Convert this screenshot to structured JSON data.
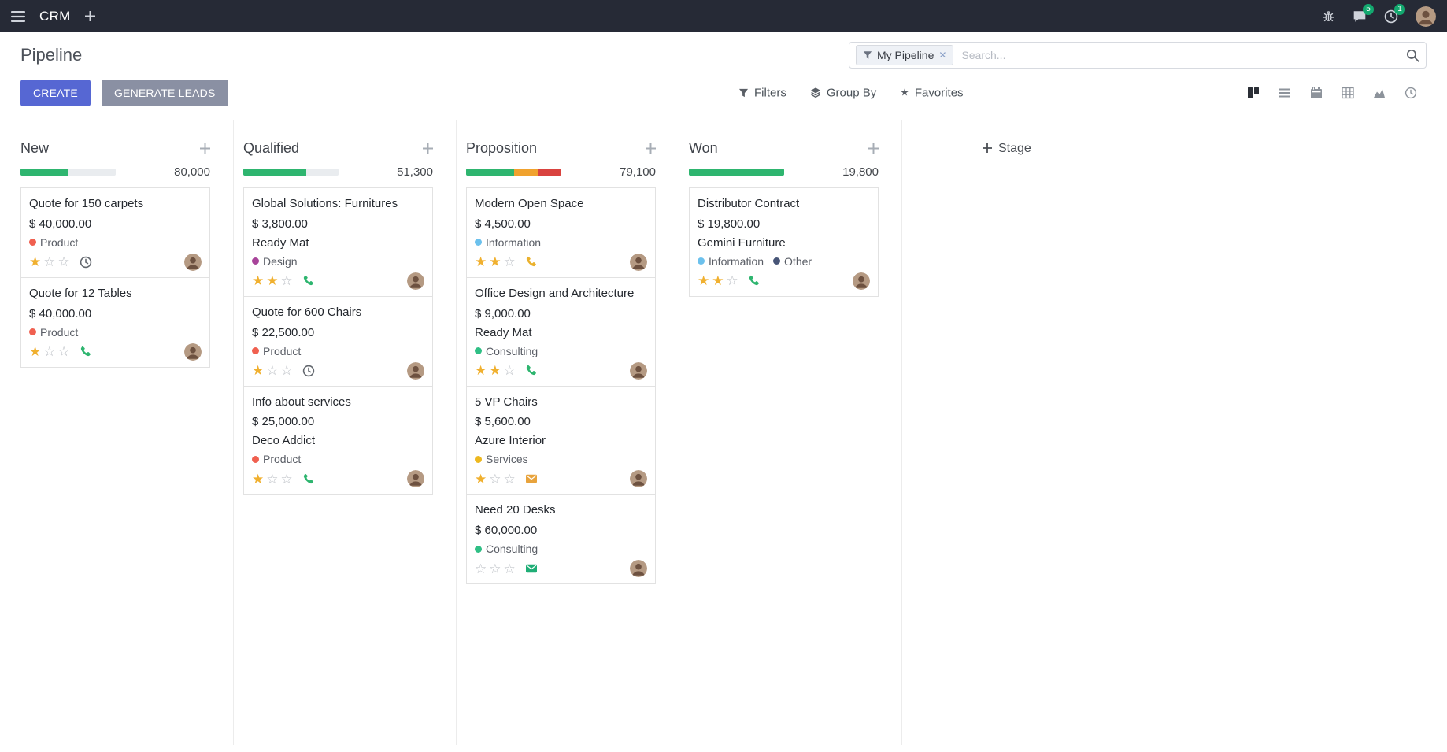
{
  "navbar": {
    "app_name": "CRM",
    "messages_badge": "5",
    "activities_badge": "1"
  },
  "control_panel": {
    "title": "Pipeline",
    "create_label": "CREATE",
    "generate_leads_label": "GENERATE LEADS",
    "search": {
      "facet_label": "My Pipeline",
      "placeholder": "Search..."
    },
    "filters_label": "Filters",
    "group_by_label": "Group By",
    "favorites_label": "Favorites",
    "view_switcher": {
      "active": "kanban",
      "views": [
        "kanban",
        "list",
        "calendar",
        "pivot",
        "graph",
        "activity"
      ]
    }
  },
  "theme": {
    "navbar_bg": "#262a36",
    "primary": "#5667d3",
    "secondary": "#8a90a3",
    "success": "#2eb56f",
    "warning": "#f0a22e",
    "danger": "#d9433f",
    "badge": "#13a86f"
  },
  "board": {
    "add_stage": {
      "label": "Stage"
    },
    "columns": [
      {
        "name": "New",
        "total": "80,000",
        "progress": [
          {
            "color": "#2eb56f",
            "pct": 50
          }
        ],
        "cards": [
          {
            "title": "Quote for 150 carpets",
            "amount": "$ 40,000.00",
            "stars": 1,
            "tags": [
              {
                "label": "Product",
                "color": "#f06050"
              }
            ],
            "activity": {
              "type": "clock",
              "color": "#62676e"
            }
          },
          {
            "title": "Quote for 12 Tables",
            "amount": "$ 40,000.00",
            "stars": 1,
            "tags": [
              {
                "label": "Product",
                "color": "#f06050"
              }
            ],
            "activity": {
              "type": "phone",
              "color": "#2eb56f"
            }
          }
        ]
      },
      {
        "name": "Qualified",
        "total": "51,300",
        "progress": [
          {
            "color": "#2eb56f",
            "pct": 66
          }
        ],
        "cards": [
          {
            "title": "Global Solutions: Furnitures",
            "amount": "$ 3,800.00",
            "partner": "Ready Mat",
            "stars": 2,
            "tags": [
              {
                "label": "Design",
                "color": "#a8449a"
              }
            ],
            "activity": {
              "type": "phone",
              "color": "#2eb56f"
            }
          },
          {
            "title": "Quote for 600 Chairs",
            "amount": "$ 22,500.00",
            "stars": 1,
            "tags": [
              {
                "label": "Product",
                "color": "#f06050"
              }
            ],
            "activity": {
              "type": "clock",
              "color": "#62676e"
            }
          },
          {
            "title": "Info about services",
            "amount": "$ 25,000.00",
            "partner": "Deco Addict",
            "stars": 1,
            "tags": [
              {
                "label": "Product",
                "color": "#f06050"
              }
            ],
            "activity": {
              "type": "phone",
              "color": "#2eb56f"
            }
          }
        ]
      },
      {
        "name": "Proposition",
        "total": "79,100",
        "progress": [
          {
            "color": "#2eb56f",
            "pct": 50
          },
          {
            "color": "#f0a22e",
            "pct": 26
          },
          {
            "color": "#d9433f",
            "pct": 24
          }
        ],
        "cards": [
          {
            "title": "Modern Open Space",
            "amount": "$ 4,500.00",
            "stars": 2,
            "tags": [
              {
                "label": "Information",
                "color": "#6cc1ed"
              }
            ],
            "activity": {
              "type": "phone",
              "color": "#eab12d"
            }
          },
          {
            "title": "Office Design and Architecture",
            "amount": "$ 9,000.00",
            "partner": "Ready Mat",
            "stars": 2,
            "tags": [
              {
                "label": "Consulting",
                "color": "#2fbf85"
              }
            ],
            "activity": {
              "type": "phone",
              "color": "#2eb56f"
            }
          },
          {
            "title": "5 VP Chairs",
            "amount": "$ 5,600.00",
            "partner": "Azure Interior",
            "stars": 1,
            "tags": [
              {
                "label": "Services",
                "color": "#edb81f"
              }
            ],
            "activity": {
              "type": "mail",
              "color": "#e8a33c"
            }
          },
          {
            "title": "Need 20 Desks",
            "amount": "$ 60,000.00",
            "stars": 0,
            "tags": [
              {
                "label": "Consulting",
                "color": "#2fbf85"
              }
            ],
            "activity": {
              "type": "mail",
              "color": "#1fae76"
            }
          }
        ]
      },
      {
        "name": "Won",
        "total": "19,800",
        "progress": [
          {
            "color": "#2eb56f",
            "pct": 100
          }
        ],
        "cards": [
          {
            "title": "Distributor Contract",
            "amount": "$ 19,800.00",
            "partner": "Gemini Furniture",
            "stars": 2,
            "tags": [
              {
                "label": "Information",
                "color": "#6cc1ed"
              },
              {
                "label": "Other",
                "color": "#475577"
              }
            ],
            "activity": {
              "type": "phone",
              "color": "#2eb56f"
            }
          }
        ]
      }
    ]
  }
}
